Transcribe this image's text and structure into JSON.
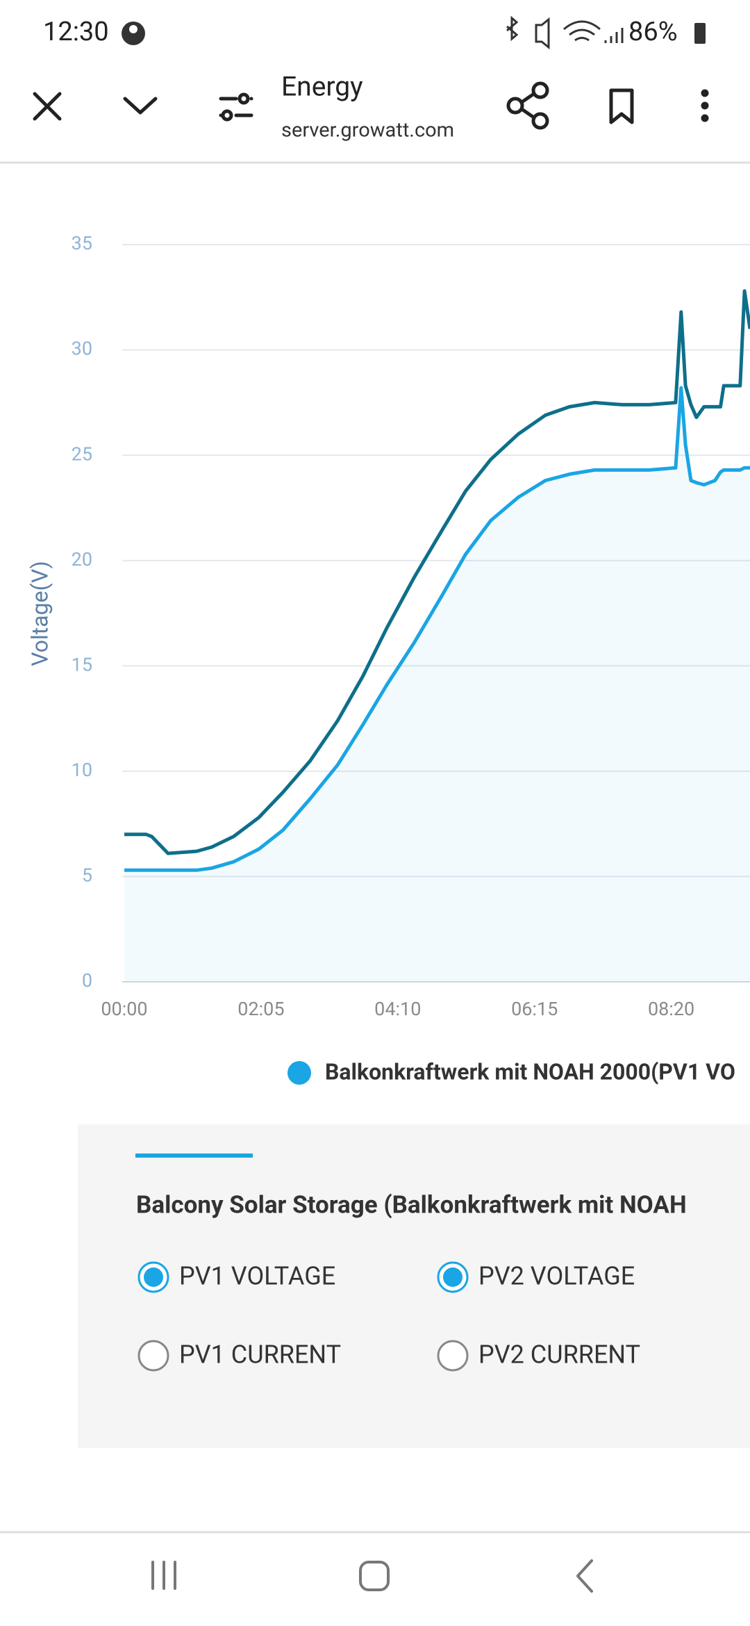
{
  "status_bar": {
    "time": "12:30",
    "battery": "86%"
  },
  "toolbar": {
    "title": "Energy",
    "url": "server.growatt.com"
  },
  "chart_data": {
    "type": "line",
    "ylabel": "Voltage(V)",
    "x": [
      "00:00",
      "00:20",
      "00:25",
      "00:40",
      "01:06",
      "01:20",
      "01:40",
      "02:03",
      "02:25",
      "02:50",
      "03:15",
      "03:38",
      "04:00",
      "04:25",
      "04:50",
      "05:12",
      "05:35",
      "06:00",
      "06:25",
      "06:47",
      "07:10",
      "07:35",
      "08:00",
      "08:24",
      "08:29",
      "08:33",
      "08:38",
      "08:43",
      "08:50",
      "09:00",
      "09:05",
      "09:08",
      "09:15",
      "09:23",
      "09:27",
      "09:32"
    ],
    "series": [
      {
        "name": "Balkonkraftwerk mit NOAH 2000(PV1 VO",
        "color": "#1aa5e4",
        "values": [
          5.3,
          5.3,
          5.3,
          5.3,
          5.3,
          5.4,
          5.7,
          6.3,
          7.2,
          8.7,
          10.3,
          12.2,
          14.1,
          16.1,
          18.3,
          20.3,
          21.9,
          23.0,
          23.8,
          24.1,
          24.3,
          24.3,
          24.3,
          24.4,
          28.2,
          25.5,
          23.8,
          23.7,
          23.6,
          23.8,
          24.2,
          24.3,
          24.3,
          24.3,
          24.4,
          24.4
        ]
      },
      {
        "color": "#0e6f8a",
        "values": [
          7.0,
          7.0,
          6.9,
          6.1,
          6.2,
          6.4,
          6.9,
          7.8,
          9.0,
          10.5,
          12.4,
          14.5,
          16.8,
          19.2,
          21.4,
          23.3,
          24.8,
          26.0,
          26.9,
          27.3,
          27.5,
          27.4,
          27.4,
          27.5,
          31.8,
          28.3,
          27.4,
          26.8,
          27.3,
          27.3,
          27.3,
          28.3,
          28.3,
          28.3,
          32.8,
          31.0
        ]
      }
    ],
    "xlim": [
      "00:00",
      "09:32"
    ],
    "xticks": [
      "00:00",
      "02:05",
      "04:10",
      "06:15",
      "08:20"
    ],
    "ylim": [
      0,
      35
    ],
    "yticks": [
      0,
      5,
      10,
      15,
      20,
      25,
      30,
      35
    ],
    "grid": true,
    "area": true
  },
  "panel": {
    "heading": "Balcony Solar Storage (Balkonkraftwerk mit NOAH",
    "options": [
      {
        "label": "PV1 VOLTAGE",
        "selected": true
      },
      {
        "label": "PV2 VOLTAGE",
        "selected": true
      },
      {
        "label": "PV1 CURRENT",
        "selected": false
      },
      {
        "label": "PV2 CURRENT",
        "selected": false
      }
    ]
  }
}
